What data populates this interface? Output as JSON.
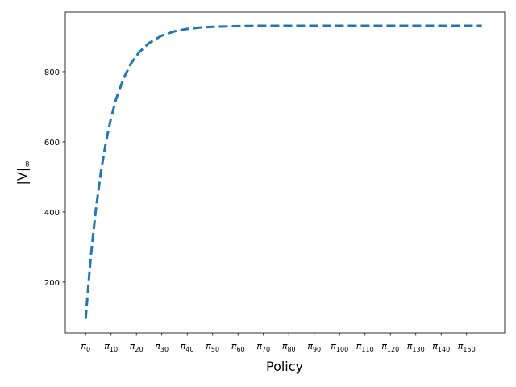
{
  "chart_data": {
    "type": "line",
    "title": "",
    "xlabel": "Policy",
    "ylabel_base": "|V|",
    "ylabel_sub": "∞",
    "xlim": [
      -8,
      165
    ],
    "ylim": [
      55,
      970
    ],
    "x_ticks": [
      {
        "x": 0,
        "base": "π",
        "sub": "0"
      },
      {
        "x": 10,
        "base": "π",
        "sub": "10"
      },
      {
        "x": 20,
        "base": "π",
        "sub": "20"
      },
      {
        "x": 30,
        "base": "π",
        "sub": "30"
      },
      {
        "x": 40,
        "base": "π",
        "sub": "40"
      },
      {
        "x": 50,
        "base": "π",
        "sub": "50"
      },
      {
        "x": 60,
        "base": "π",
        "sub": "60"
      },
      {
        "x": 70,
        "base": "π",
        "sub": "70"
      },
      {
        "x": 80,
        "base": "π",
        "sub": "80"
      },
      {
        "x": 90,
        "base": "π",
        "sub": "90"
      },
      {
        "x": 100,
        "base": "π",
        "sub": "100"
      },
      {
        "x": 110,
        "base": "π",
        "sub": "110"
      },
      {
        "x": 120,
        "base": "π",
        "sub": "120"
      },
      {
        "x": 130,
        "base": "π",
        "sub": "130"
      },
      {
        "x": 140,
        "base": "π",
        "sub": "140"
      },
      {
        "x": 150,
        "base": "π",
        "sub": "150"
      }
    ],
    "y_ticks": [
      {
        "value": 200,
        "label": "200"
      },
      {
        "value": 400,
        "label": "400"
      },
      {
        "value": 600,
        "label": "600"
      },
      {
        "value": 800,
        "label": "800"
      }
    ],
    "grid": false,
    "series": [
      {
        "color": "#1f77b4",
        "line_style": "dashed",
        "x": [
          0,
          2,
          4,
          6,
          8,
          10,
          12,
          15,
          18,
          21,
          25,
          30,
          35,
          40,
          45,
          50,
          60,
          70,
          80,
          100,
          120,
          140,
          156
        ],
        "y": [
          95,
          270,
          405,
          513,
          599,
          668,
          722,
          782,
          825,
          855,
          882,
          903,
          915,
          922,
          926,
          928,
          930,
          931,
          931,
          931,
          931,
          931,
          931
        ]
      }
    ]
  }
}
